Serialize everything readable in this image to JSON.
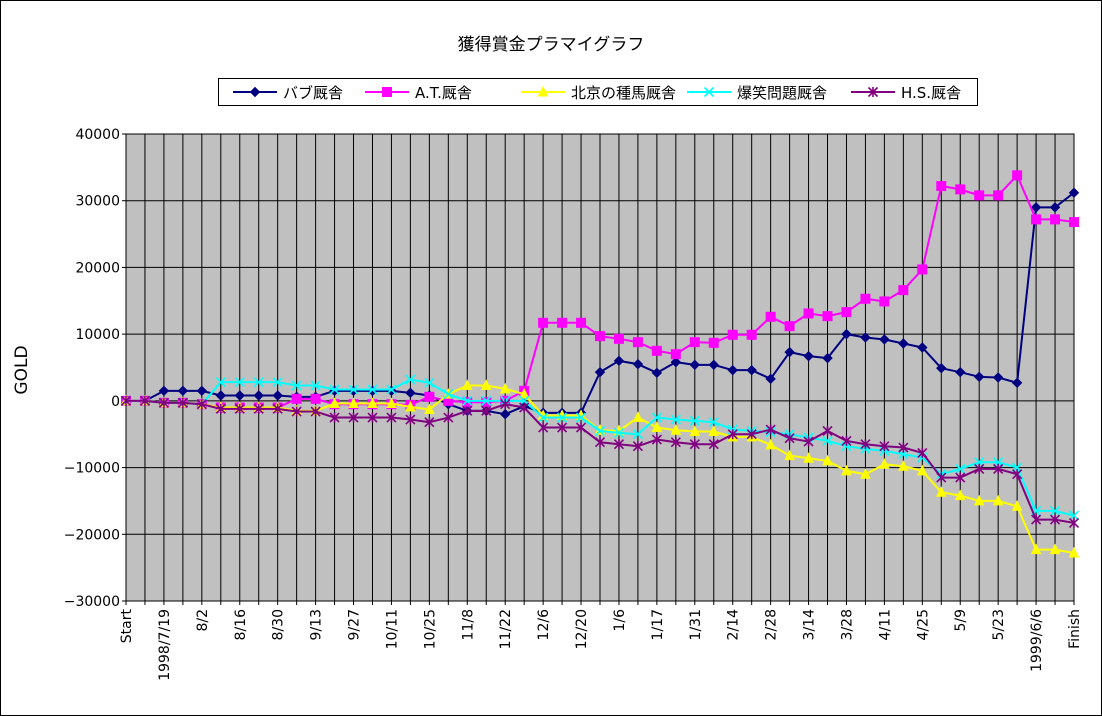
{
  "chart_data": {
    "type": "line",
    "title": "獲得賞金プラマイグラフ",
    "ylabel": "GOLD",
    "xlabel": "",
    "ylim": [
      -30000,
      40000
    ],
    "yticks": [
      40000,
      30000,
      20000,
      10000,
      0,
      -10000,
      -20000,
      -30000
    ],
    "ytick_labels": [
      "40000",
      "30000",
      "20000",
      "10000",
      "0",
      "−10000",
      "−20000",
      "−30000"
    ],
    "grid": true,
    "legend_position": "top",
    "plot_background": "#c0c0c0",
    "categories": [
      "Start",
      "",
      "1998/7/19",
      "",
      "8/2",
      "",
      "8/16",
      "",
      "8/30",
      "",
      "9/13",
      "",
      "9/27",
      "",
      "10/11",
      "",
      "10/25",
      "",
      "11/8",
      "",
      "11/22",
      "",
      "12/6",
      "",
      "12/20",
      "",
      "1/6",
      "",
      "1/17",
      "",
      "1/31",
      "",
      "2/14",
      "",
      "2/28",
      "",
      "3/14",
      "",
      "3/28",
      "",
      "4/11",
      "",
      "4/25",
      "",
      "5/9",
      "",
      "5/23",
      "",
      "1999/6/6",
      "",
      "Finish"
    ],
    "series": [
      {
        "name": "バブ厩舎",
        "color": "#000080",
        "marker": "diamond",
        "values": [
          0,
          0,
          1500,
          1500,
          1500,
          800,
          800,
          800,
          800,
          600,
          600,
          1500,
          1500,
          1500,
          1500,
          1200,
          800,
          -500,
          -1500,
          -1500,
          -2000,
          -800,
          -1800,
          -1800,
          -1800,
          4300,
          6000,
          5500,
          4200,
          5800,
          5400,
          5400,
          4600,
          4600,
          3300,
          7300,
          6700,
          6400,
          10000,
          9500,
          9200,
          8600,
          8000,
          4900,
          4300,
          3600,
          3500,
          2700,
          29000,
          29000,
          31200
        ]
      },
      {
        "name": "A.T.厩舎",
        "color": "#ff00ff",
        "marker": "square",
        "values": [
          0,
          0,
          -300,
          -300,
          -500,
          -1000,
          -1000,
          -1000,
          -1000,
          300,
          300,
          -500,
          -500,
          -500,
          -500,
          -600,
          600,
          0,
          -200,
          -200,
          0,
          1500,
          11700,
          11700,
          11700,
          9700,
          9300,
          8800,
          7500,
          7000,
          8800,
          8700,
          9900,
          9900,
          12600,
          11200,
          13100,
          12700,
          13300,
          15300,
          14900,
          16600,
          19700,
          32200,
          31700,
          30800,
          30800,
          33800,
          27200,
          27200,
          26800
        ]
      },
      {
        "name": "北京の種馬厩舎",
        "color": "#ffff00",
        "marker": "triangle",
        "values": [
          0,
          0,
          -300,
          -300,
          -500,
          -1000,
          -1000,
          -1000,
          -1000,
          -1500,
          -1500,
          -400,
          -400,
          -400,
          -400,
          -900,
          -1300,
          1000,
          2300,
          2300,
          1800,
          1000,
          -2200,
          -2200,
          -2200,
          -4400,
          -4500,
          -2500,
          -4000,
          -4400,
          -4600,
          -4600,
          -5400,
          -5400,
          -6600,
          -8200,
          -8600,
          -9000,
          -10500,
          -11000,
          -9500,
          -9800,
          -10500,
          -13700,
          -14200,
          -15000,
          -15000,
          -15800,
          -22300,
          -22300,
          -22800
        ]
      },
      {
        "name": "爆笑問題厩舎",
        "color": "#00ffff",
        "marker": "x",
        "values": [
          0,
          0,
          -300,
          -300,
          -500,
          2800,
          2800,
          2800,
          2800,
          2300,
          2300,
          1700,
          1700,
          1700,
          1700,
          3200,
          2700,
          1000,
          0,
          0,
          0,
          0,
          -2500,
          -2500,
          -2500,
          -4500,
          -4800,
          -5000,
          -2500,
          -2800,
          -3000,
          -3200,
          -4300,
          -4500,
          -4700,
          -5000,
          -5500,
          -6000,
          -6800,
          -7200,
          -7500,
          -8000,
          -8500,
          -11000,
          -10200,
          -9200,
          -9200,
          -10000,
          -16500,
          -16500,
          -17200
        ]
      },
      {
        "name": "H.S.厩舎",
        "color": "#800080",
        "marker": "star",
        "values": [
          0,
          0,
          -300,
          -300,
          -500,
          -1200,
          -1200,
          -1200,
          -1200,
          -1600,
          -1600,
          -2500,
          -2500,
          -2500,
          -2500,
          -2800,
          -3200,
          -2500,
          -1500,
          -1500,
          -500,
          -1000,
          -4000,
          -4000,
          -4000,
          -6200,
          -6500,
          -6800,
          -5800,
          -6200,
          -6500,
          -6500,
          -5000,
          -5000,
          -4300,
          -5600,
          -6100,
          -4500,
          -6000,
          -6500,
          -6800,
          -7000,
          -7800,
          -11500,
          -11500,
          -10200,
          -10200,
          -11000,
          -17800,
          -17800,
          -18300
        ]
      }
    ]
  }
}
